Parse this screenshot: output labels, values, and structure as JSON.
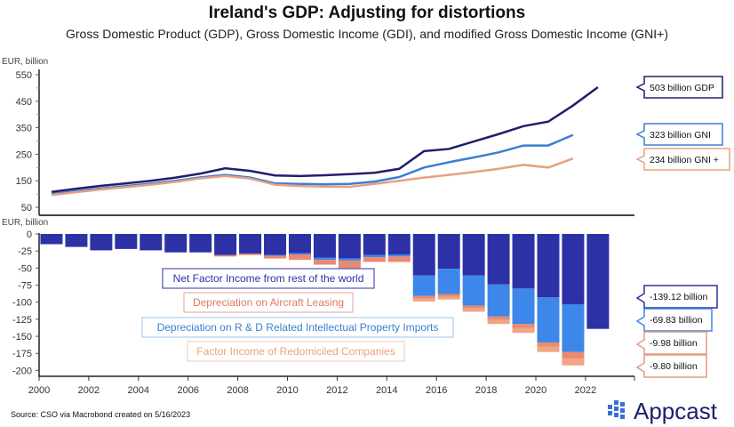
{
  "chart_data": [
    {
      "type": "line",
      "title": "Ireland's GDP: Adjusting for distortions",
      "subtitle": "Gross Domestic Product (GDP), Gross Domestic Income (GDI), and modified Gross Domestic Income (GNI+)",
      "ylabel": "EUR, billion",
      "ylim": [
        30,
        560
      ],
      "yticks": [
        50,
        150,
        250,
        350,
        450,
        550
      ],
      "x": [
        2000,
        2001,
        2002,
        2003,
        2004,
        2005,
        2006,
        2007,
        2008,
        2009,
        2010,
        2011,
        2012,
        2013,
        2014,
        2015,
        2016,
        2017,
        2018,
        2019,
        2020,
        2021,
        2022
      ],
      "series": [
        {
          "id": "gdp",
          "color": "#1f1f6e",
          "label": "503 billion GDP",
          "values": [
            108,
            120,
            131,
            140,
            150,
            162,
            177,
            197,
            187,
            170,
            168,
            171,
            175,
            180,
            195,
            262,
            270,
            298,
            326,
            356,
            373,
            434,
            503
          ]
        },
        {
          "id": "gni",
          "color": "#3b7fd4",
          "label": "323 billion GNI",
          "values": [
            100,
            111,
            121,
            130,
            139,
            150,
            163,
            172,
            162,
            140,
            138,
            137,
            138,
            147,
            164,
            200,
            220,
            238,
            257,
            283,
            283,
            323,
            null
          ]
        },
        {
          "id": "gnistar",
          "color": "#e8a080",
          "label": "234 billion GNI +",
          "values": [
            96,
            107,
            117,
            126,
            135,
            146,
            159,
            168,
            158,
            135,
            130,
            128,
            127,
            138,
            150,
            162,
            172,
            183,
            195,
            210,
            200,
            234,
            null
          ]
        }
      ]
    },
    {
      "type": "bar",
      "stacked": true,
      "ylabel": "EUR, billion",
      "ylim": [
        -205,
        0
      ],
      "yticks": [
        0,
        -25,
        -50,
        -75,
        -100,
        -125,
        -150,
        -175,
        -200
      ],
      "xticks": [
        2000,
        2002,
        2004,
        2006,
        2008,
        2010,
        2012,
        2014,
        2016,
        2018,
        2020,
        2022
      ],
      "x": [
        2000,
        2001,
        2002,
        2003,
        2004,
        2005,
        2006,
        2007,
        2008,
        2009,
        2010,
        2011,
        2012,
        2013,
        2014,
        2015,
        2016,
        2017,
        2018,
        2019,
        2020,
        2021,
        2022
      ],
      "series": [
        {
          "name": "Net Factor Income from rest of the world",
          "color": "#2d31a6",
          "label": "-139.12 billion",
          "values": [
            -15,
            -19,
            -24,
            -22,
            -24,
            -27,
            -27,
            -31,
            -29,
            -31,
            -28,
            -35,
            -36,
            -31,
            -30,
            -61,
            -51,
            -61,
            -74,
            -80,
            -93,
            -103,
            -139.12
          ]
        },
        {
          "name": "Depreciation on R & D Related Intellectual Property Imports",
          "color": "#3d87ea",
          "label": "-69.83 billion",
          "values": [
            0,
            0,
            0,
            0,
            0,
            0,
            0,
            0,
            0,
            -1,
            -2,
            -3,
            -3,
            -3,
            -3,
            -30,
            -37,
            -44,
            -47,
            -52,
            -66,
            -69.83,
            0
          ]
        },
        {
          "name": "Depreciation on Aircraft Leasing",
          "color": "#e98a70",
          "label": "-9.98 billion",
          "values": [
            0,
            0,
            0,
            0,
            0,
            0,
            0,
            -2,
            -2,
            -4,
            -8,
            -7,
            -11,
            -7,
            -8,
            -4,
            -4,
            -4,
            -5,
            -6,
            -6,
            -9.98,
            0
          ]
        },
        {
          "name": "Factor Income of Redomiciled Companies",
          "color": "#f0a585",
          "label": "-9.80 billion",
          "values": [
            0,
            0,
            0,
            0,
            0,
            0,
            0,
            0,
            0,
            0,
            0,
            0,
            0,
            0,
            0,
            -4,
            -4,
            -5,
            -6,
            -7,
            -8,
            -9.8,
            0
          ]
        }
      ]
    }
  ],
  "footer": {
    "source": "Source: CSO via Macrobond created on 5/16/2023",
    "logo": "Appcast"
  }
}
